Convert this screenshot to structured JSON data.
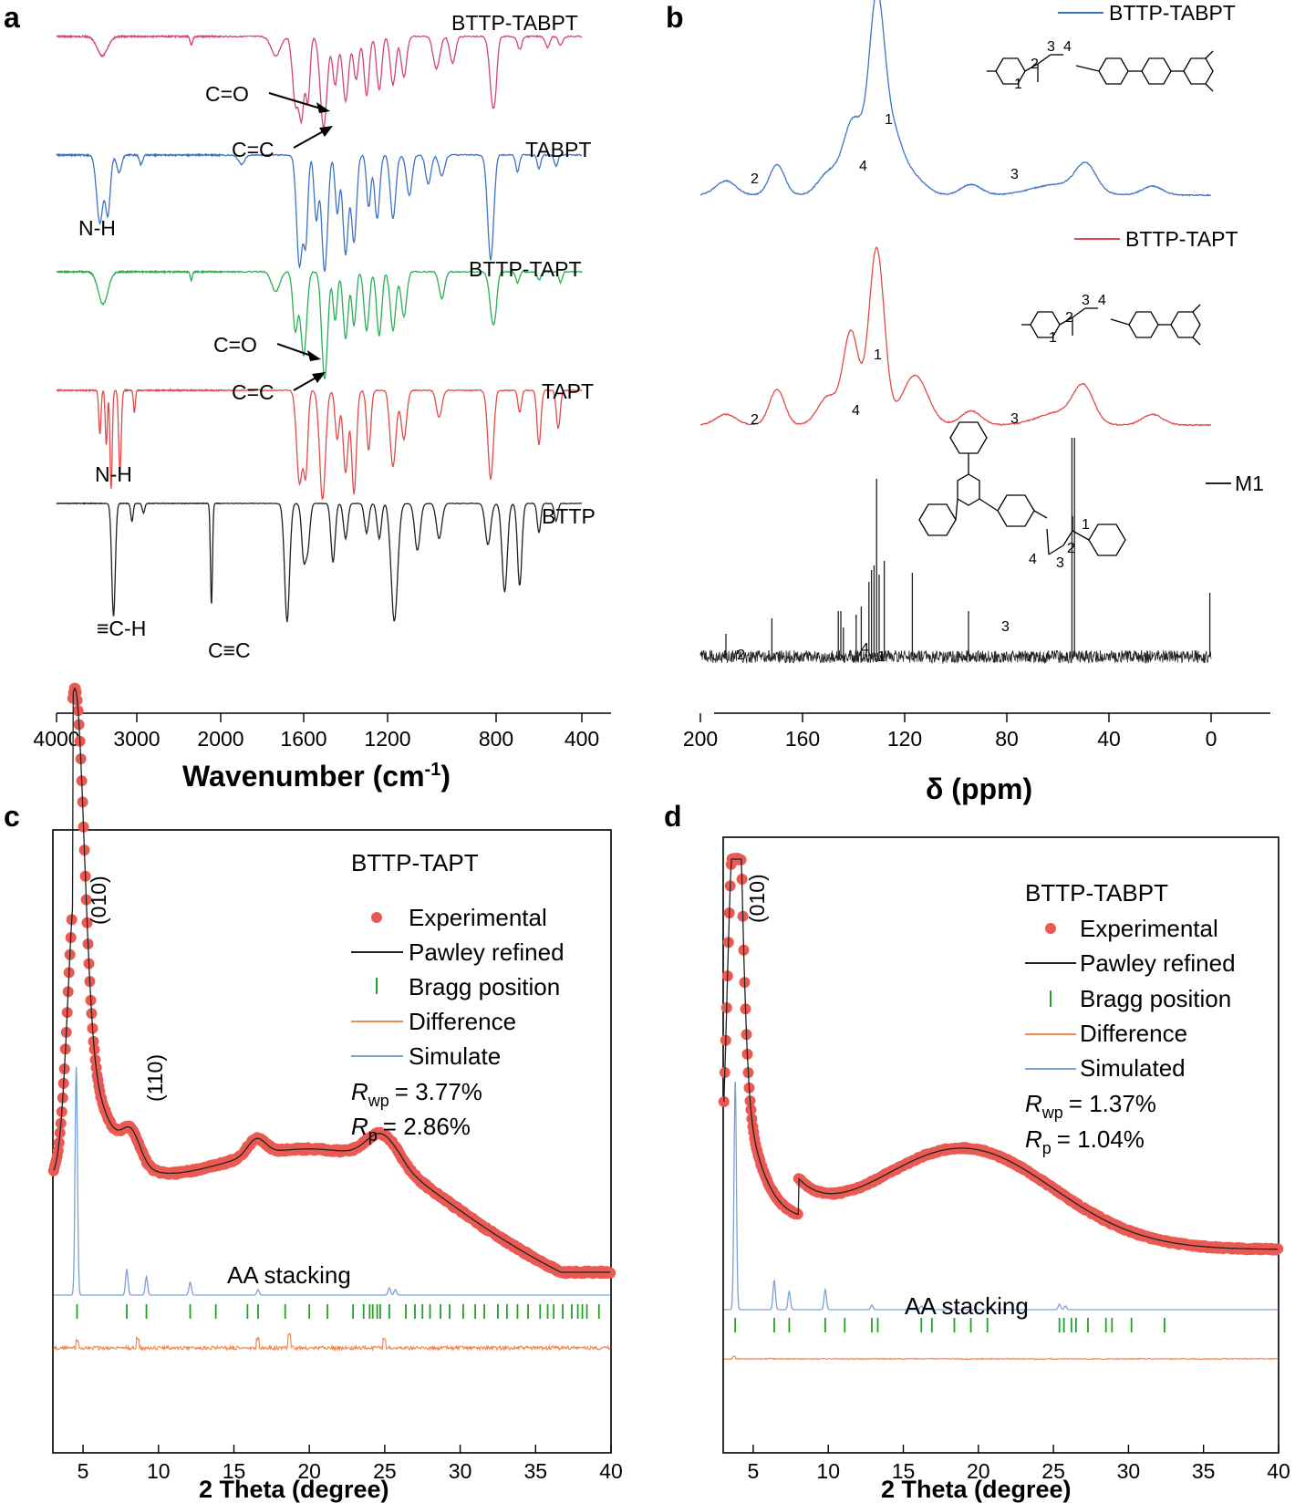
{
  "panels": {
    "a": "a",
    "b": "b",
    "c": "c",
    "d": "d"
  },
  "colors": {
    "pink": "#d2456f",
    "blue": "#3f74c4",
    "green": "#2cae55",
    "red": "#e24b4b",
    "black": "#222222",
    "expt": "#ea5a53",
    "bragg": "#22a028",
    "diff": "#f28a55",
    "sim": "#7aa2d6"
  },
  "chart_data": [
    {
      "panel": "a",
      "type": "line",
      "xlabel": "Wavenumber (cm",
      "xlabel_sup": "-1",
      "xlabel_close": ")",
      "x_ticks": [
        "4000",
        "3000",
        "2000",
        "1600",
        "1200",
        "800",
        "400"
      ],
      "series": [
        {
          "name": "BTTP-TABPT",
          "color": "#d2456f",
          "baseline": 0.05,
          "noise": 1.5,
          "peaks": [
            [
              3430,
              0.18,
              65
            ],
            [
              2350,
              0.08,
              15
            ],
            [
              1735,
              0.18,
              22
            ],
            [
              1640,
              0.62,
              14
            ],
            [
              1610,
              0.72,
              12
            ],
            [
              1580,
              0.6,
              10
            ],
            [
              1505,
              0.85,
              16
            ],
            [
              1450,
              0.45,
              12
            ],
            [
              1400,
              0.6,
              14
            ],
            [
              1350,
              0.4,
              12
            ],
            [
              1300,
              0.55,
              12
            ],
            [
              1240,
              0.5,
              12
            ],
            [
              1180,
              0.45,
              10
            ],
            [
              1140,
              0.38,
              10
            ],
            [
              1020,
              0.3,
              12
            ],
            [
              960,
              0.25,
              10
            ],
            [
              810,
              0.68,
              12
            ],
            [
              690,
              0.12,
              10
            ],
            [
              560,
              0.1,
              10
            ],
            [
              500,
              0.08,
              10
            ]
          ]
        },
        {
          "name": "TABPT",
          "color": "#3f74c4",
          "baseline": 0.05,
          "noise": 1.5,
          "peaks": [
            [
              3460,
              0.58,
              40
            ],
            [
              3360,
              0.5,
              30
            ],
            [
              3220,
              0.15,
              30
            ],
            [
              2950,
              0.08,
              20
            ],
            [
              1900,
              0.08,
              15
            ],
            [
              1620,
              0.95,
              14
            ],
            [
              1590,
              0.7,
              10
            ],
            [
              1540,
              0.55,
              10
            ],
            [
              1500,
              1.0,
              14
            ],
            [
              1440,
              0.5,
              10
            ],
            [
              1400,
              0.85,
              13
            ],
            [
              1360,
              0.75,
              12
            ],
            [
              1290,
              0.45,
              10
            ],
            [
              1250,
              0.55,
              12
            ],
            [
              1180,
              0.55,
              10
            ],
            [
              1120,
              0.35,
              10
            ],
            [
              1050,
              0.25,
              10
            ],
            [
              1000,
              0.18,
              10
            ],
            [
              820,
              0.9,
              11
            ],
            [
              700,
              0.15,
              8
            ],
            [
              600,
              0.12,
              8
            ],
            [
              520,
              0.1,
              8
            ]
          ]
        },
        {
          "name": "BTTP-TAPT",
          "color": "#2cae55",
          "baseline": 0.05,
          "noise": 1.5,
          "peaks": [
            [
              3420,
              0.3,
              60
            ],
            [
              2350,
              0.08,
              12
            ],
            [
              1735,
              0.18,
              20
            ],
            [
              1640,
              0.55,
              12
            ],
            [
              1600,
              0.78,
              14
            ],
            [
              1500,
              1.0,
              14
            ],
            [
              1450,
              0.45,
              10
            ],
            [
              1400,
              0.62,
              12
            ],
            [
              1360,
              0.5,
              10
            ],
            [
              1300,
              0.55,
              12
            ],
            [
              1240,
              0.6,
              12
            ],
            [
              1180,
              0.55,
              10
            ],
            [
              1140,
              0.42,
              10
            ],
            [
              1000,
              0.25,
              10
            ],
            [
              810,
              0.5,
              12
            ],
            [
              700,
              0.1,
              8
            ],
            [
              600,
              0.08,
              8
            ],
            [
              500,
              0.1,
              8
            ]
          ]
        },
        {
          "name": "TAPT",
          "color": "#e24b4b",
          "baseline": 0.05,
          "noise": 1.2,
          "peaks": [
            [
              3460,
              0.4,
              14
            ],
            [
              3380,
              0.5,
              13
            ],
            [
              3320,
              0.9,
              14
            ],
            [
              3210,
              0.75,
              16
            ],
            [
              3030,
              0.2,
              12
            ],
            [
              1620,
              0.85,
              14
            ],
            [
              1590,
              0.72,
              10
            ],
            [
              1510,
              1.0,
              14
            ],
            [
              1440,
              0.45,
              10
            ],
            [
              1400,
              0.75,
              12
            ],
            [
              1360,
              0.95,
              11
            ],
            [
              1290,
              0.55,
              10
            ],
            [
              1180,
              0.7,
              11
            ],
            [
              1140,
              0.45,
              10
            ],
            [
              1010,
              0.25,
              10
            ],
            [
              820,
              0.82,
              10
            ],
            [
              690,
              0.2,
              8
            ],
            [
              600,
              0.5,
              9
            ],
            [
              510,
              0.35,
              9
            ]
          ]
        },
        {
          "name": "BTTP",
          "color": "#222222",
          "baseline": 0.05,
          "noise": 0.6,
          "peaks": [
            [
              3290,
              0.95,
              22
            ],
            [
              3060,
              0.15,
              15
            ],
            [
              2920,
              0.08,
              15
            ],
            [
              2110,
              0.85,
              12
            ],
            [
              1680,
              1.0,
              12
            ],
            [
              1600,
              0.45,
              10
            ],
            [
              1580,
              0.35,
              10
            ],
            [
              1460,
              0.5,
              10
            ],
            [
              1400,
              0.3,
              10
            ],
            [
              1300,
              0.25,
              10
            ],
            [
              1240,
              0.3,
              10
            ],
            [
              1175,
              1.0,
              12
            ],
            [
              1090,
              0.4,
              10
            ],
            [
              1010,
              0.3,
              10
            ],
            [
              830,
              0.35,
              10
            ],
            [
              760,
              0.75,
              12
            ],
            [
              690,
              0.7,
              10
            ],
            [
              600,
              0.25,
              8
            ],
            [
              520,
              0.15,
              8
            ]
          ]
        }
      ],
      "annotations": [
        "C=O",
        "C=C",
        "N-H",
        "C=O",
        "C=C",
        "N-H",
        "≡C-H",
        "C≡C"
      ]
    },
    {
      "panel": "b",
      "type": "line",
      "xlabel": "δ (ppm)",
      "x_ticks": [
        "200",
        "160",
        "120",
        "80",
        "40",
        "0"
      ],
      "series": [
        {
          "name": "BTTP-TABPT",
          "color": "#3f74c4",
          "peaks": [
            [
              190,
              0.08,
              4
            ],
            [
              170,
              0.17,
              3
            ],
            [
              150,
              0.12,
              4
            ],
            [
              140,
              0.42,
              4
            ],
            [
              131,
              1.0,
              3
            ],
            [
              125,
              0.32,
              4
            ],
            [
              117,
              0.1,
              5
            ],
            [
              94,
              0.06,
              4
            ],
            [
              60,
              0.06,
              10
            ],
            [
              49,
              0.15,
              4
            ],
            [
              23,
              0.05,
              4
            ]
          ]
        },
        {
          "name": "BTTP-TAPT",
          "color": "#e24b4b",
          "peaks": [
            [
              190,
              0.06,
              4
            ],
            [
              170,
              0.2,
              3
            ],
            [
              150,
              0.16,
              4
            ],
            [
              141,
              0.52,
              3
            ],
            [
              131,
              1.0,
              3
            ],
            [
              116,
              0.28,
              5
            ],
            [
              94,
              0.08,
              4
            ],
            [
              60,
              0.07,
              8
            ],
            [
              50,
              0.2,
              4
            ],
            [
              23,
              0.06,
              4
            ]
          ]
        },
        {
          "name": "M1",
          "color": "#222222"
        }
      ],
      "peak_labels": [
        "2",
        "1",
        "4",
        "3",
        "2",
        "1",
        "4",
        "3",
        "2",
        "4",
        "1",
        "3"
      ]
    },
    {
      "panel": "c",
      "type": "line",
      "xlabel": "2 Theta (degree)",
      "x_ticks": [
        "5",
        "10",
        "15",
        "20",
        "25",
        "30",
        "35",
        "40"
      ],
      "legend_title": "BTTP-TAPT",
      "legend": [
        "Experimental",
        "Pawley refined",
        "Bragg position",
        "Difference",
        "Simulate"
      ],
      "rwp": "= 3.77%",
      "rp": "= 2.86%",
      "reflections": [
        "(010)",
        "(110)"
      ],
      "note": "AA stacking",
      "bragg_positions": [
        4.6,
        7.9,
        9.2,
        12.1,
        13.8,
        15.9,
        16.6,
        18.4,
        20.0,
        21.2,
        22.9,
        23.6,
        24.0,
        24.2,
        24.5,
        24.7,
        25.3,
        26.4,
        27.0,
        27.5,
        28.0,
        28.7,
        29.3,
        30.2,
        31.0,
        31.6,
        32.5,
        33.1,
        33.8,
        34.5,
        35.3,
        35.8,
        36.2,
        36.8,
        37.4,
        37.8,
        38.1,
        38.4,
        39.2
      ]
    },
    {
      "panel": "d",
      "type": "line",
      "xlabel": "2 Theta (degree)",
      "x_ticks": [
        "5",
        "10",
        "15",
        "20",
        "25",
        "30",
        "35",
        "40"
      ],
      "legend_title": "BTTP-TABPT",
      "legend": [
        "Experimental",
        "Pawley refined",
        "Bragg position",
        "Difference",
        "Simulated"
      ],
      "rwp": "= 1.37%",
      "rp": "= 1.04%",
      "reflections": [
        "(010)"
      ],
      "note": "AA stacking",
      "bragg_positions": [
        3.8,
        6.4,
        7.4,
        9.8,
        11.1,
        12.9,
        13.3,
        16.2,
        16.9,
        18.4,
        19.5,
        20.6,
        25.4,
        25.7,
        26.2,
        26.5,
        27.3,
        28.5,
        28.9,
        30.2,
        32.4
      ]
    }
  ],
  "text": {
    "rsub_wp": "wp",
    "rsub_p": "p",
    "r": "R"
  }
}
